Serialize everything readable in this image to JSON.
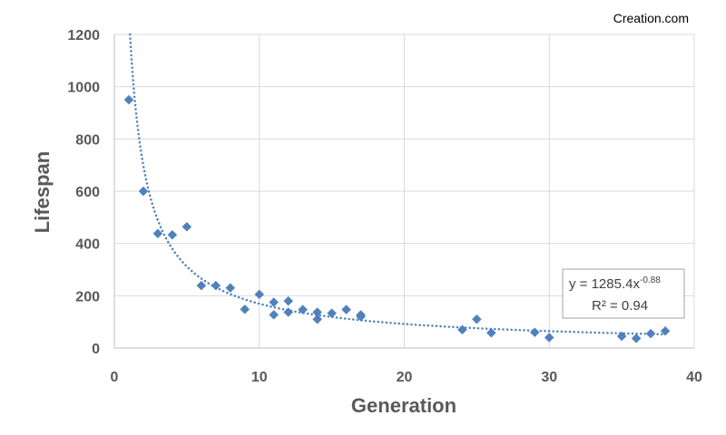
{
  "watermark": "Creation.com",
  "chart_data": {
    "type": "scatter",
    "title": "",
    "xlabel": "Generation",
    "ylabel": "Lifespan",
    "xlim": [
      0,
      40
    ],
    "ylim": [
      0,
      1200
    ],
    "xticks": [
      0,
      10,
      20,
      30,
      40
    ],
    "yticks": [
      0,
      200,
      400,
      600,
      800,
      1000,
      1200
    ],
    "grid": true,
    "series": [
      {
        "name": "Lifespan",
        "color": "#4f81bd",
        "marker": "diamond",
        "points": [
          [
            1,
            950
          ],
          [
            2,
            600
          ],
          [
            3,
            438
          ],
          [
            4,
            433
          ],
          [
            5,
            464
          ],
          [
            6,
            239
          ],
          [
            7,
            239
          ],
          [
            8,
            230
          ],
          [
            9,
            148
          ],
          [
            10,
            205
          ],
          [
            11,
            175
          ],
          [
            11,
            127
          ],
          [
            12,
            180
          ],
          [
            12,
            137
          ],
          [
            13,
            147
          ],
          [
            14,
            137
          ],
          [
            14,
            110
          ],
          [
            15,
            133
          ],
          [
            16,
            147
          ],
          [
            17,
            127
          ],
          [
            17,
            120
          ],
          [
            24,
            70
          ],
          [
            25,
            110
          ],
          [
            26,
            58
          ],
          [
            29,
            60
          ],
          [
            30,
            40
          ],
          [
            35,
            45
          ],
          [
            36,
            37
          ],
          [
            37,
            55
          ],
          [
            38,
            65
          ]
        ]
      }
    ],
    "trendline": {
      "type": "power",
      "a": 1285.4,
      "b": -0.88,
      "color": "#4f81bd",
      "style": "dotted",
      "equation": {
        "prefix": "y = 1285.4x",
        "exponent": "-0.88",
        "r2": "R² = 0.94"
      }
    }
  }
}
